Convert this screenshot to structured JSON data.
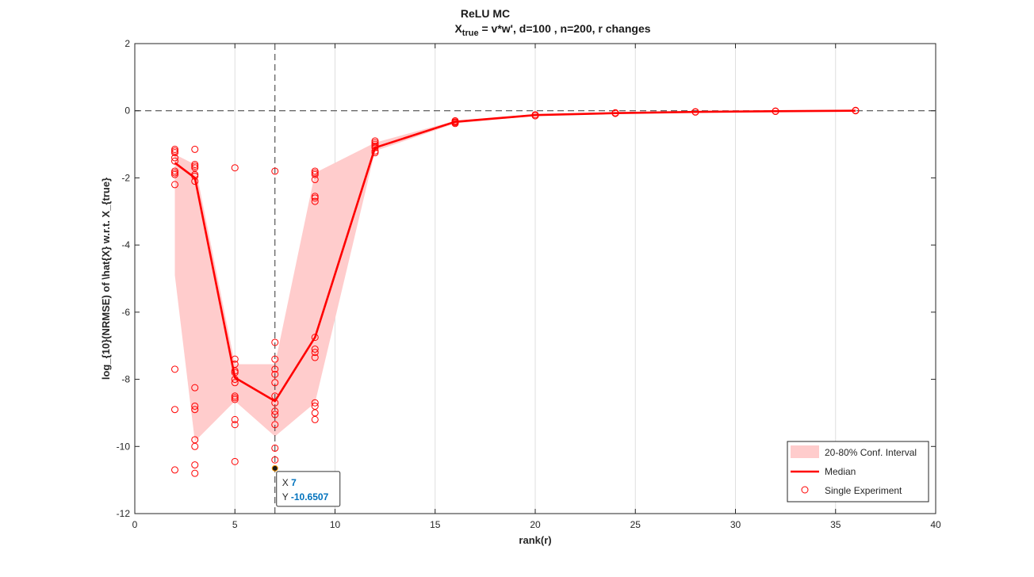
{
  "chart_data": {
    "type": "line",
    "title": "ReLU MC",
    "subtitle": {
      "prefix": "X",
      "subscript": "true",
      "suffix": " = v*w', d=100 , n=200, r changes"
    },
    "xlabel": "rank(r)",
    "ylabel": "log_{10}(NRMSE) of \\hat{X} w.r.t. X_{true}",
    "xlim": [
      0,
      40
    ],
    "ylim": [
      -12,
      2
    ],
    "xticks": [
      0,
      5,
      10,
      15,
      20,
      25,
      30,
      35,
      40
    ],
    "yticks": [
      -12,
      -10,
      -8,
      -6,
      -4,
      -2,
      0,
      2
    ],
    "grid": "x",
    "reference_line_y": 0,
    "crosshair_x": 7,
    "legend_position": "bottom-right",
    "colors": {
      "series": "#ff0000",
      "band": "#ffcccc",
      "axis": "#262626",
      "grid": "#dfdfdf",
      "datatip_value": "#0072bd"
    },
    "legend": [
      "20-80% Conf. Interval",
      "Median",
      "Single Experiment"
    ],
    "band": {
      "name": "20-80% Conf. Interval",
      "x": [
        2,
        3,
        5,
        7,
        9,
        12,
        16,
        20,
        24,
        28,
        32,
        36
      ],
      "upper": [
        -1.3,
        -1.6,
        -7.55,
        -7.55,
        -1.85,
        -0.95,
        -0.3,
        -0.1,
        -0.06,
        -0.03,
        -0.01,
        0.0
      ],
      "lower": [
        -4.9,
        -9.85,
        -8.65,
        -9.7,
        -8.7,
        -1.2,
        -0.38,
        -0.15,
        -0.08,
        -0.04,
        -0.02,
        0.0
      ]
    },
    "series": [
      {
        "name": "Median",
        "x": [
          2,
          3,
          5,
          7,
          9,
          12,
          16,
          20,
          24,
          28,
          32,
          36
        ],
        "values": [
          -1.55,
          -2.0,
          -7.95,
          -8.65,
          -6.75,
          -1.1,
          -0.33,
          -0.13,
          -0.07,
          -0.035,
          -0.015,
          0.0
        ]
      }
    ],
    "scatter": {
      "name": "Single Experiment",
      "points": [
        [
          2,
          -1.15
        ],
        [
          2,
          -1.2
        ],
        [
          2,
          -1.25
        ],
        [
          2,
          -1.4
        ],
        [
          2,
          -1.5
        ],
        [
          2,
          -1.8
        ],
        [
          2,
          -1.85
        ],
        [
          2,
          -1.9
        ],
        [
          2,
          -2.2
        ],
        [
          2,
          -7.7
        ],
        [
          2,
          -8.9
        ],
        [
          2,
          -10.7
        ],
        [
          3,
          -1.15
        ],
        [
          3,
          -1.6
        ],
        [
          3,
          -1.65
        ],
        [
          3,
          -1.7
        ],
        [
          3,
          -1.9
        ],
        [
          3,
          -1.95
        ],
        [
          3,
          -2.1
        ],
        [
          3,
          -8.25
        ],
        [
          3,
          -8.8
        ],
        [
          3,
          -8.9
        ],
        [
          3,
          -9.8
        ],
        [
          3,
          -10.0
        ],
        [
          3,
          -10.55
        ],
        [
          3,
          -10.8
        ],
        [
          5,
          -1.7
        ],
        [
          5,
          -7.4
        ],
        [
          5,
          -7.55
        ],
        [
          5,
          -7.75
        ],
        [
          5,
          -7.8
        ],
        [
          5,
          -8.0
        ],
        [
          5,
          -8.1
        ],
        [
          5,
          -8.5
        ],
        [
          5,
          -8.55
        ],
        [
          5,
          -8.6
        ],
        [
          5,
          -9.2
        ],
        [
          5,
          -9.35
        ],
        [
          5,
          -10.45
        ],
        [
          7,
          -1.8
        ],
        [
          7,
          -6.9
        ],
        [
          7,
          -7.4
        ],
        [
          7,
          -7.7
        ],
        [
          7,
          -7.85
        ],
        [
          7,
          -8.1
        ],
        [
          7,
          -8.5
        ],
        [
          7,
          -8.7
        ],
        [
          7,
          -8.95
        ],
        [
          7,
          -9.05
        ],
        [
          7,
          -9.35
        ],
        [
          7,
          -10.05
        ],
        [
          7,
          -10.4
        ],
        [
          9,
          -1.8
        ],
        [
          9,
          -1.85
        ],
        [
          9,
          -1.9
        ],
        [
          9,
          -2.05
        ],
        [
          9,
          -2.55
        ],
        [
          9,
          -2.6
        ],
        [
          9,
          -2.7
        ],
        [
          9,
          -6.75
        ],
        [
          9,
          -7.1
        ],
        [
          9,
          -7.2
        ],
        [
          9,
          -7.35
        ],
        [
          9,
          -8.7
        ],
        [
          9,
          -8.8
        ],
        [
          9,
          -9.0
        ],
        [
          9,
          -9.2
        ],
        [
          12,
          -0.9
        ],
        [
          12,
          -0.95
        ],
        [
          12,
          -1.0
        ],
        [
          12,
          -1.05
        ],
        [
          12,
          -1.1
        ],
        [
          12,
          -1.2
        ],
        [
          12,
          -1.25
        ],
        [
          16,
          -0.3
        ],
        [
          16,
          -0.33
        ],
        [
          16,
          -0.35
        ],
        [
          16,
          -0.38
        ],
        [
          20,
          -0.12
        ],
        [
          20,
          -0.15
        ],
        [
          24,
          -0.06
        ],
        [
          24,
          -0.08
        ],
        [
          28,
          -0.03
        ],
        [
          28,
          -0.04
        ],
        [
          32,
          -0.01
        ],
        [
          32,
          -0.02
        ],
        [
          36,
          0.0
        ],
        [
          36,
          0.01
        ]
      ]
    },
    "datatip": {
      "x_label": "X",
      "x_value": "7",
      "y_label": "Y",
      "y_value": "-10.6507",
      "point": [
        7,
        -10.6507
      ]
    }
  }
}
